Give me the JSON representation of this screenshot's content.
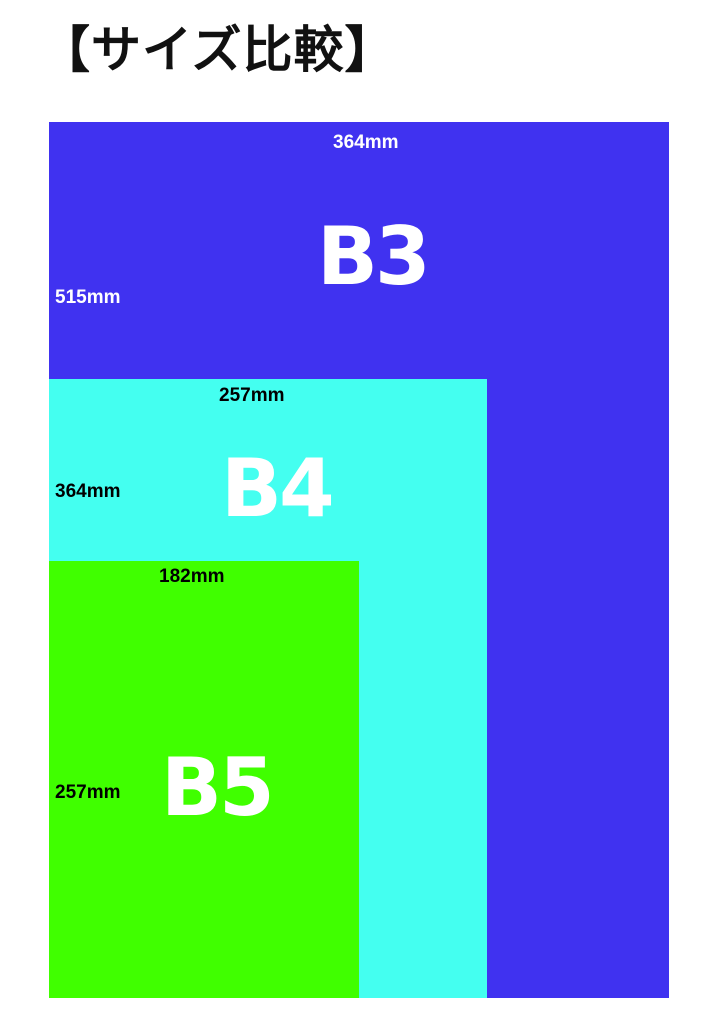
{
  "title": "【サイズ比較】",
  "colors": {
    "B3": "#4032F0",
    "B4": "#44FFF0",
    "B5": "#40FF00"
  },
  "sizes": [
    {
      "name": "B3",
      "width": "364mm",
      "height": "515mm"
    },
    {
      "name": "B4",
      "width": "257mm",
      "height": "364mm"
    },
    {
      "name": "B5",
      "width": "182mm",
      "height": "257mm"
    }
  ]
}
